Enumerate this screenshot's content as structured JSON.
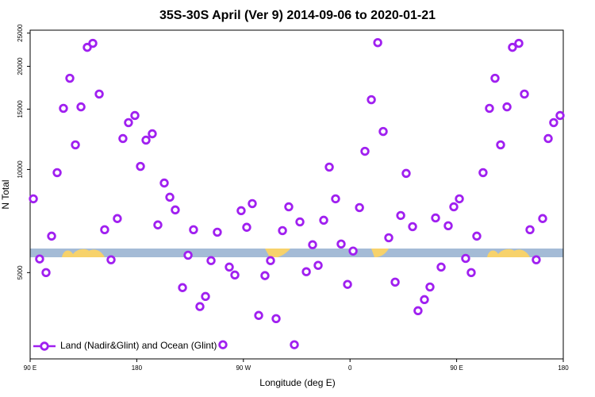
{
  "chart_data": {
    "type": "scatter",
    "title": "35S-30S April (Ver 9)   2014-09-06 to 2020-01-21",
    "xlabel": "Longitude (deg E)",
    "ylabel": "N Total",
    "xlim": [
      90,
      540
    ],
    "xticks": [
      {
        "value": 90,
        "label": "90 E"
      },
      {
        "value": 180,
        "label": "180"
      },
      {
        "value": 270,
        "label": "90 W"
      },
      {
        "value": 360,
        "label": "0"
      },
      {
        "value": 450,
        "label": "90 E"
      },
      {
        "value": 540,
        "label": "180"
      }
    ],
    "ylim": [
      2800,
      25500
    ],
    "yticks": [
      5000,
      10000,
      15000,
      20000,
      25000
    ],
    "log_y": true,
    "grid": false,
    "legend": "bottomleft",
    "series": [
      {
        "name": "Land (Nadir&Glint) and Ocean (Glint)",
        "color": "#a020f0",
        "x": [
          92.7,
          98.0,
          103.4,
          108.1,
          112.8,
          118.1,
          123.5,
          128.2,
          132.9,
          138.2,
          142.9,
          148.3,
          152.9,
          158.3,
          163.6,
          168.3,
          173.0,
          178.4,
          183.1,
          187.8,
          193.1,
          197.8,
          203.2,
          207.9,
          212.5,
          218.6,
          223.3,
          227.9,
          233.3,
          238.0,
          242.7,
          248.0,
          252.7,
          258.1,
          262.8,
          268.1,
          272.8,
          277.5,
          282.9,
          288.2,
          292.9,
          297.6,
          303.0,
          308.3,
          313.0,
          317.7,
          323.1,
          328.4,
          333.1,
          337.8,
          342.5,
          347.8,
          352.5,
          357.9,
          362.6,
          368.0,
          372.6,
          378.0,
          383.4,
          388.0,
          392.7,
          398.1,
          402.8,
          407.4,
          412.8,
          417.4,
          422.8,
          427.5,
          432.2,
          436.9,
          442.9,
          447.6,
          452.3,
          457.6,
          462.3,
          467.0,
          472.3,
          477.7,
          482.4,
          487.1,
          492.5,
          497.1,
          502.5,
          507.2,
          511.9,
          517.2,
          522.6,
          527.3,
          531.9,
          537.3
        ],
        "y": [
          8210,
          5480,
          5000,
          6390,
          9790,
          15080,
          18460,
          11800,
          15230,
          22720,
          23340,
          16600,
          6670,
          5450,
          7190,
          12310,
          13700,
          14370,
          10210,
          12180,
          12710,
          6890,
          9130,
          8300,
          7620,
          4520,
          5620,
          6670,
          3980,
          4260,
          5420,
          6560,
          3080,
          5190,
          4920,
          7580,
          6780,
          7950,
          3750,
          4900,
          5420,
          3670,
          6630,
          7780,
          3080,
          7030,
          5030,
          6030,
          5250,
          7110,
          10160,
          8210,
          6060,
          4620,
          5780,
          7740,
          11300,
          15980,
          23450,
          12910,
          6320,
          4690,
          7340,
          9740,
          6810,
          3870,
          4170,
          4540,
          7220,
          5190,
          6850,
          7780,
          8210,
          5500,
          5000,
          6390,
          9790,
          15080,
          18460,
          11800,
          15230,
          22720,
          23340,
          16600,
          6670,
          5450,
          7190,
          12310,
          13700,
          14370
        ]
      }
    ]
  }
}
